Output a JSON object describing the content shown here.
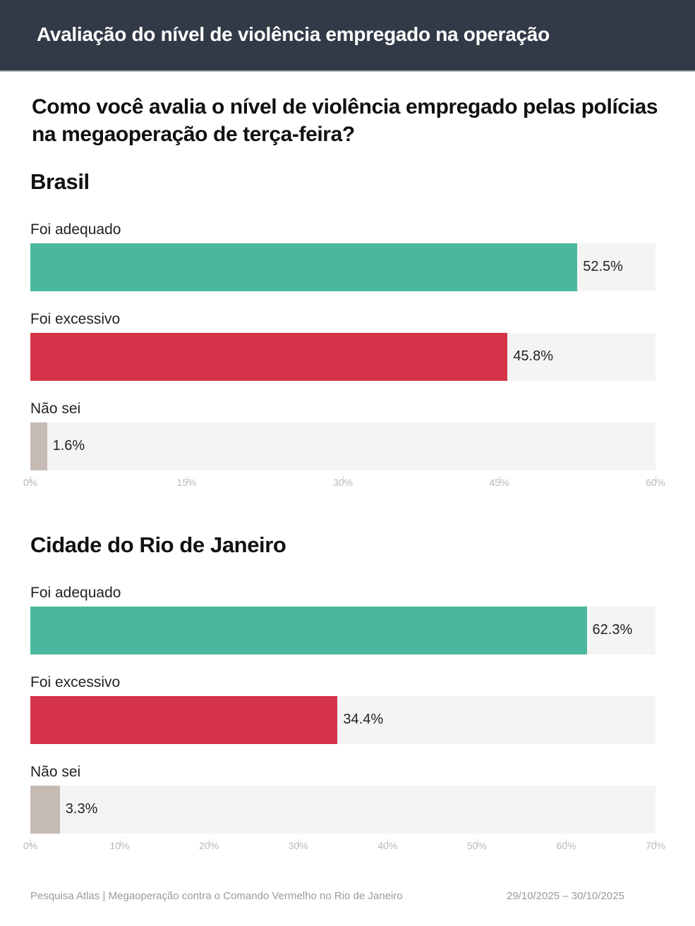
{
  "header": {
    "title": "Avaliação do nível de violência empregado na operação"
  },
  "question": "Como você avalia o nível de violência empregado pelas polícias na megaoperação de terça-feira?",
  "colors": {
    "header_bg": "#323a47",
    "adequado": "#4bb89d",
    "excessivo": "#d4334a",
    "nao_sei": "#c6bab5",
    "track": "#f4f4f3"
  },
  "chart_data": [
    {
      "type": "bar",
      "orientation": "horizontal",
      "title": "Brasil",
      "categories": [
        "Foi adequado",
        "Foi excessivo",
        "Não sei"
      ],
      "values": [
        52.5,
        45.8,
        1.6
      ],
      "value_labels": [
        "52.5%",
        "45.8%",
        "1.6%"
      ],
      "colors": [
        "#4bb89d",
        "#d4334a",
        "#c6bab5"
      ],
      "xlim": [
        0,
        60
      ],
      "ticks": [
        0,
        15,
        30,
        45,
        60
      ],
      "tick_labels": [
        "0%",
        "15%",
        "30%",
        "45%",
        "60%"
      ]
    },
    {
      "type": "bar",
      "orientation": "horizontal",
      "title": "Cidade do Rio de Janeiro",
      "categories": [
        "Foi adequado",
        "Foi excessivo",
        "Não sei"
      ],
      "values": [
        62.3,
        34.4,
        3.3
      ],
      "value_labels": [
        "62.3%",
        "34.4%",
        "3.3%"
      ],
      "colors": [
        "#4bb89d",
        "#d4334a",
        "#c6bab5"
      ],
      "xlim": [
        0,
        70
      ],
      "ticks": [
        0,
        10,
        20,
        30,
        40,
        50,
        60,
        70
      ],
      "tick_labels": [
        "0%",
        "10%",
        "20%",
        "30%",
        "40%",
        "50%",
        "60%",
        "70%"
      ]
    }
  ],
  "footer": {
    "source": "Pesquisa Atlas | Megaoperação contra o Comando Vermelho no Rio de Janeiro",
    "dates": "29/10/2025 – 30/10/2025"
  }
}
